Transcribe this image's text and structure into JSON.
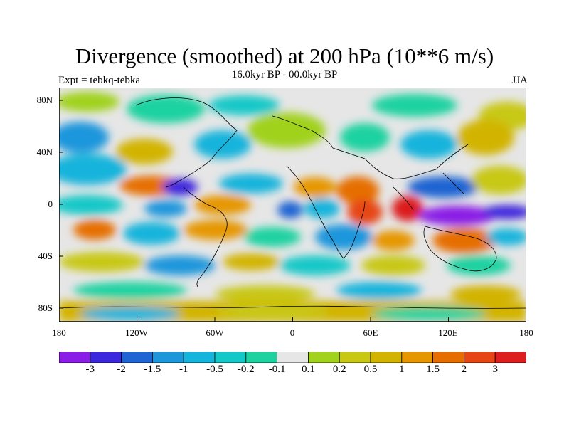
{
  "header": {
    "title": "Divergence (smoothed) at 200 hPa (10**6 m/s)",
    "subtitle": "16.0kyr BP - 00.0kyr BP",
    "left_label": "Expt = tebkq-tebka",
    "right_label": "JJA"
  },
  "map": {
    "lat_labels": [
      "80N",
      "40N",
      "0",
      "40S",
      "80S"
    ],
    "lat_values": [
      80,
      40,
      0,
      -40,
      -80
    ],
    "lon_labels": [
      "180",
      "120W",
      "60W",
      "0",
      "60E",
      "120E",
      "180"
    ],
    "lon_values": [
      -180,
      -120,
      -60,
      0,
      60,
      120,
      180
    ],
    "lat_range": [
      -90,
      90
    ],
    "lon_range": [
      -180,
      180
    ]
  },
  "colorbar": {
    "colors": [
      "#8a1ee6",
      "#3c28dc",
      "#1e64d2",
      "#1e96dc",
      "#14b4dc",
      "#14c8c8",
      "#1ed2a0",
      "#e6e6e6",
      "#a0d21e",
      "#c8c814",
      "#d2b400",
      "#e69600",
      "#e66e00",
      "#e64614",
      "#dc1e1e"
    ],
    "labels": [
      "-3",
      "-2",
      "-1.5",
      "-1",
      "-0.5",
      "-0.2",
      "-0.1",
      "0.1",
      "0.2",
      "0.5",
      "1",
      "1.5",
      "2",
      "3"
    ]
  }
}
